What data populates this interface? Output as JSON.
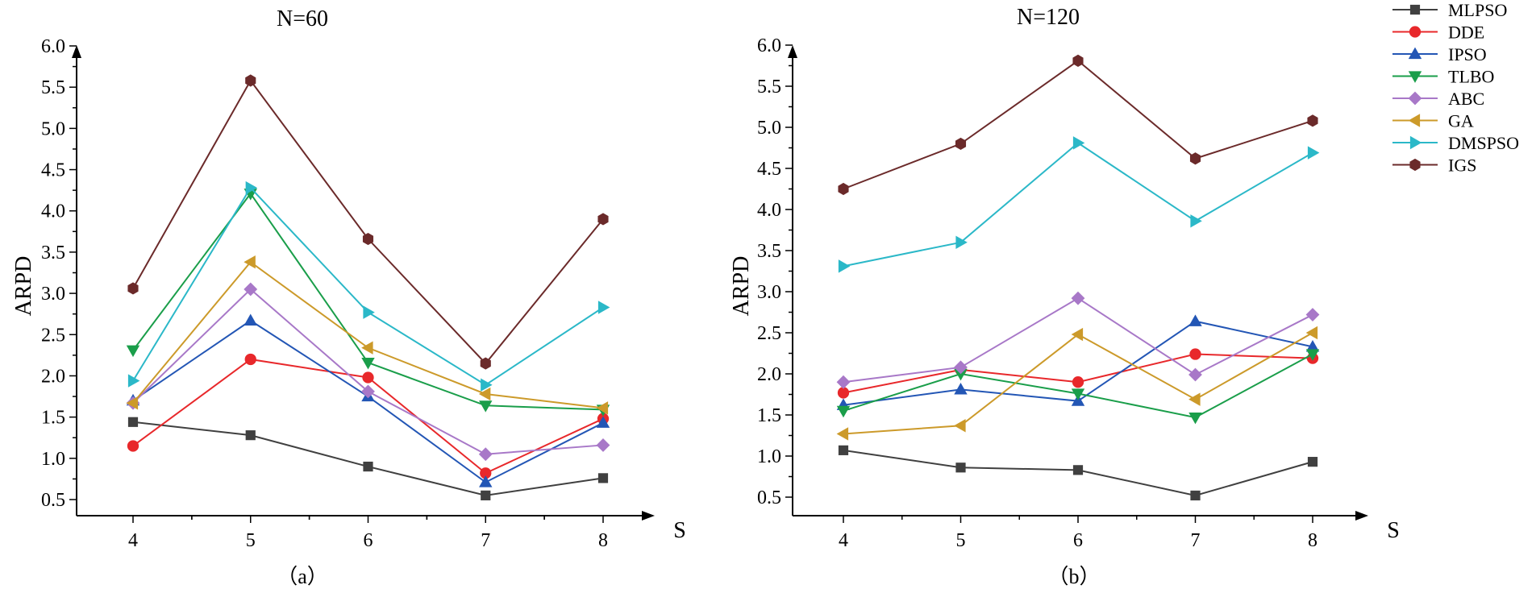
{
  "colors": {
    "MLPSO": "#404040",
    "DDE": "#e8282b",
    "IPSO": "#2356b5",
    "TLBO": "#1a9e4a",
    "ABC": "#a878c8",
    "GA": "#cc9a2a",
    "DMSPSO": "#2bb8c8",
    "IGS": "#6b2a2a"
  },
  "legend": {
    "position": "top-right",
    "entries": [
      {
        "name": "MLPSO",
        "marker": "square"
      },
      {
        "name": "DDE",
        "marker": "circle"
      },
      {
        "name": "IPSO",
        "marker": "triangle-up"
      },
      {
        "name": "TLBO",
        "marker": "triangle-down"
      },
      {
        "name": "ABC",
        "marker": "diamond"
      },
      {
        "name": "GA",
        "marker": "triangle-left"
      },
      {
        "name": "DMSPSO",
        "marker": "triangle-right"
      },
      {
        "name": "IGS",
        "marker": "hexagon"
      }
    ]
  },
  "chart_data": [
    {
      "type": "line",
      "title": "N=60",
      "caption": "（a）",
      "xlabel": "S",
      "ylabel": "ARPD",
      "x": [
        4,
        5,
        6,
        7,
        8
      ],
      "ylim": [
        0.4,
        6.0
      ],
      "yticks": [
        "0.5",
        "1.0",
        "1.5",
        "2.0",
        "2.5",
        "3.0",
        "3.5",
        "4.0",
        "4.5",
        "5.0",
        "5.5",
        "6.0"
      ],
      "xticks": [
        "4",
        "5",
        "6",
        "7",
        "8"
      ],
      "series": [
        {
          "name": "MLPSO",
          "values": [
            1.44,
            1.28,
            0.9,
            0.55,
            0.76
          ]
        },
        {
          "name": "DDE",
          "values": [
            1.15,
            2.2,
            1.98,
            0.82,
            1.48
          ]
        },
        {
          "name": "IPSO",
          "values": [
            1.7,
            2.67,
            1.75,
            0.71,
            1.43
          ]
        },
        {
          "name": "TLBO",
          "values": [
            2.31,
            4.21,
            2.16,
            1.64,
            1.59
          ]
        },
        {
          "name": "ABC",
          "values": [
            1.67,
            3.05,
            1.81,
            1.05,
            1.16
          ]
        },
        {
          "name": "GA",
          "values": [
            1.67,
            3.38,
            2.34,
            1.78,
            1.61
          ]
        },
        {
          "name": "DMSPSO",
          "values": [
            1.94,
            4.28,
            2.77,
            1.89,
            2.83
          ]
        },
        {
          "name": "IGS",
          "values": [
            3.06,
            5.58,
            3.66,
            2.15,
            3.9
          ]
        }
      ]
    },
    {
      "type": "line",
      "title": "N=120",
      "caption": "（b）",
      "xlabel": "S",
      "ylabel": "ARPD",
      "x": [
        4,
        5,
        6,
        7,
        8
      ],
      "ylim": [
        0.4,
        6.0
      ],
      "yticks": [
        "0.5",
        "1.0",
        "1.5",
        "2.0",
        "2.5",
        "3.0",
        "3.5",
        "4.0",
        "4.5",
        "5.0",
        "5.5",
        "6.0"
      ],
      "xticks": [
        "4",
        "5",
        "6",
        "7",
        "8"
      ],
      "series": [
        {
          "name": "MLPSO",
          "values": [
            1.07,
            0.86,
            0.83,
            0.52,
            0.93
          ]
        },
        {
          "name": "DDE",
          "values": [
            1.77,
            2.05,
            1.9,
            2.24,
            2.19
          ]
        },
        {
          "name": "IPSO",
          "values": [
            1.62,
            1.81,
            1.67,
            2.64,
            2.33
          ]
        },
        {
          "name": "TLBO",
          "values": [
            1.55,
            2.0,
            1.76,
            1.47,
            2.24
          ]
        },
        {
          "name": "ABC",
          "values": [
            1.9,
            2.08,
            2.92,
            1.99,
            2.72
          ]
        },
        {
          "name": "GA",
          "values": [
            1.27,
            1.37,
            2.48,
            1.69,
            2.5
          ]
        },
        {
          "name": "DMSPSO",
          "values": [
            3.31,
            3.6,
            4.81,
            3.86,
            4.69
          ]
        },
        {
          "name": "IGS",
          "values": [
            4.25,
            4.8,
            5.81,
            4.62,
            5.08
          ]
        }
      ]
    }
  ]
}
